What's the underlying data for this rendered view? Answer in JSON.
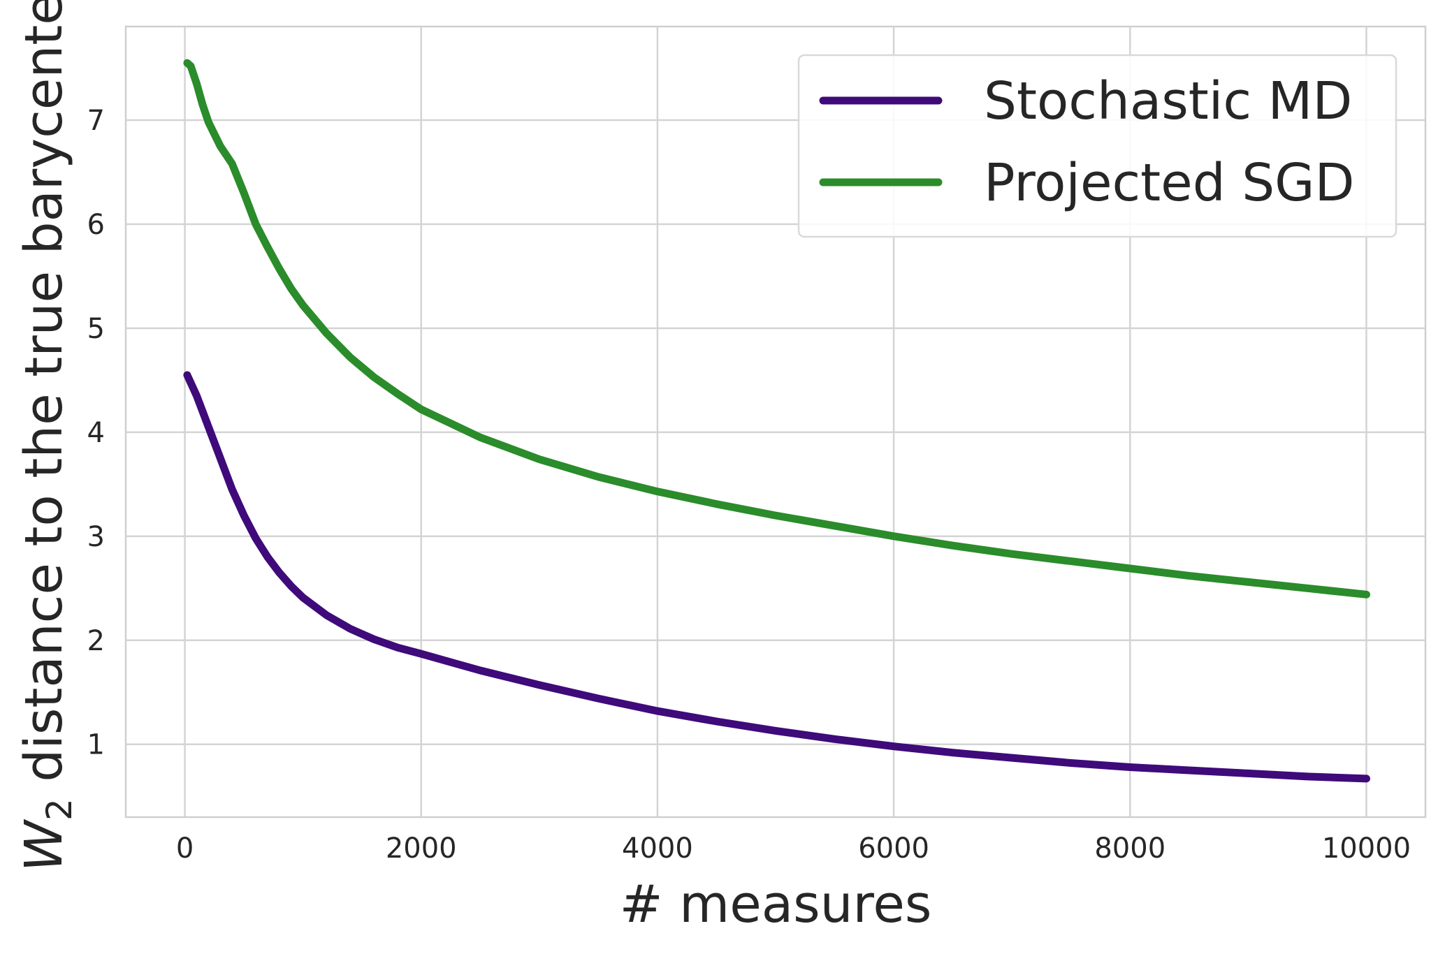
{
  "chart_data": {
    "type": "line",
    "title": "",
    "xlabel": "# measures",
    "ylabel_main": "W",
    "ylabel_sub": "2",
    "ylabel_rest": " distance to the true barycenter",
    "xlim": [
      -500,
      10500
    ],
    "ylim": [
      0.3,
      7.9
    ],
    "xticks": [
      0,
      2000,
      4000,
      6000,
      8000,
      10000
    ],
    "yticks": [
      1,
      2,
      3,
      4,
      5,
      6,
      7
    ],
    "grid": true,
    "legend_position": "top-right",
    "series": [
      {
        "name": "Stochastic MD",
        "color": "#3f0a7a",
        "x": [
          20,
          100,
          200,
          300,
          400,
          500,
          600,
          700,
          800,
          900,
          1000,
          1200,
          1400,
          1600,
          1800,
          2000,
          2500,
          3000,
          3500,
          4000,
          4500,
          5000,
          5500,
          6000,
          6500,
          7000,
          7500,
          8000,
          8500,
          9000,
          9500,
          10000
        ],
        "y": [
          4.55,
          4.35,
          4.05,
          3.75,
          3.45,
          3.2,
          2.98,
          2.8,
          2.65,
          2.52,
          2.41,
          2.24,
          2.11,
          2.01,
          1.93,
          1.87,
          1.71,
          1.57,
          1.44,
          1.32,
          1.22,
          1.13,
          1.05,
          0.98,
          0.92,
          0.87,
          0.82,
          0.78,
          0.75,
          0.72,
          0.69,
          0.67
        ]
      },
      {
        "name": "Projected SGD",
        "color": "#2a8c2a",
        "x": [
          20,
          50,
          100,
          150,
          200,
          300,
          400,
          500,
          600,
          700,
          800,
          900,
          1000,
          1200,
          1400,
          1600,
          1800,
          2000,
          2500,
          3000,
          3500,
          4000,
          4500,
          5000,
          5500,
          6000,
          6500,
          7000,
          7500,
          8000,
          8500,
          9000,
          9500,
          10000
        ],
        "y": [
          7.55,
          7.52,
          7.35,
          7.15,
          6.98,
          6.75,
          6.58,
          6.3,
          6.0,
          5.78,
          5.57,
          5.38,
          5.22,
          4.95,
          4.72,
          4.53,
          4.37,
          4.22,
          3.95,
          3.74,
          3.57,
          3.43,
          3.31,
          3.2,
          3.1,
          3.0,
          2.91,
          2.83,
          2.76,
          2.69,
          2.62,
          2.56,
          2.5,
          2.44
        ]
      }
    ]
  }
}
